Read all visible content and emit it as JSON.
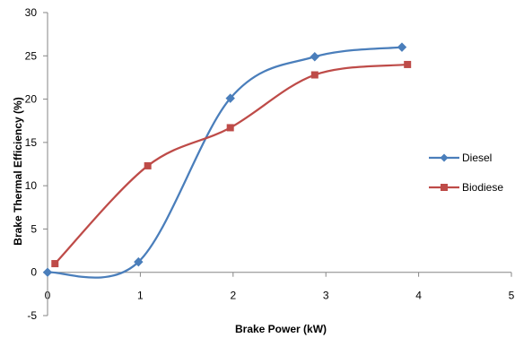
{
  "chart_data": {
    "type": "line",
    "title": "",
    "xlabel": "Brake Power (kW)",
    "ylabel": "Brake Thermal Efficiency (%)",
    "xlim": [
      0,
      5
    ],
    "ylim": [
      -5,
      30
    ],
    "xticks": [
      "0",
      "1",
      "2",
      "3",
      "4",
      "5"
    ],
    "yticks": [
      "-5",
      "0",
      "5",
      "10",
      "15",
      "20",
      "25",
      "30"
    ],
    "grid": false,
    "smooth": true,
    "legend_position": "right",
    "series": [
      {
        "name": "Diesel",
        "color": "#4a7ebb",
        "marker": "diamond",
        "x": [
          0,
          0.98,
          1.97,
          2.88,
          3.82
        ],
        "y": [
          0,
          1.2,
          20.1,
          24.9,
          26.0
        ]
      },
      {
        "name": "Biodiese",
        "color": "#be4b48",
        "marker": "square",
        "x": [
          0.08,
          1.08,
          1.97,
          2.88,
          3.88
        ],
        "y": [
          1.0,
          12.3,
          16.7,
          22.8,
          24.0
        ]
      }
    ]
  }
}
